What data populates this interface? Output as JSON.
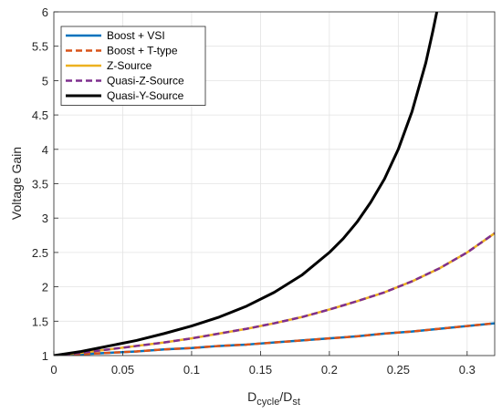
{
  "chart_data": {
    "type": "line",
    "title": "",
    "xlabel_main": "D",
    "xlabel_sub1": "cycle",
    "xlabel_mid": "/D",
    "xlabel_sub2": "st",
    "ylabel": "Voltage Gain",
    "xlim": [
      0,
      0.32
    ],
    "ylim": [
      1,
      6
    ],
    "xticks": [
      0,
      0.05,
      0.1,
      0.15,
      0.2,
      0.25,
      0.3
    ],
    "xtick_labels": [
      "0",
      "0.05",
      "0.1",
      "0.15",
      "0.2",
      "0.25",
      "0.3"
    ],
    "yticks": [
      1,
      1.5,
      2,
      2.5,
      3,
      3.5,
      4,
      4.5,
      5,
      5.5,
      6
    ],
    "ytick_labels": [
      "1",
      "1.5",
      "2",
      "2.5",
      "3",
      "3.5",
      "4",
      "4.5",
      "5",
      "5.5",
      "6"
    ],
    "grid": true,
    "legend_position": "top-left",
    "series": [
      {
        "name": "Boost + VSI",
        "color": "#0072BD",
        "dash": "solid",
        "x": [
          0,
          0.02,
          0.04,
          0.06,
          0.08,
          0.1,
          0.12,
          0.14,
          0.16,
          0.18,
          0.2,
          0.22,
          0.24,
          0.26,
          0.28,
          0.3,
          0.32
        ],
        "y": [
          1,
          1.02,
          1.04,
          1.06,
          1.09,
          1.11,
          1.14,
          1.16,
          1.19,
          1.22,
          1.25,
          1.28,
          1.32,
          1.35,
          1.39,
          1.43,
          1.47
        ]
      },
      {
        "name": "Boost + T-type",
        "color": "#D95319",
        "dash": "dashed",
        "x": [
          0,
          0.02,
          0.04,
          0.06,
          0.08,
          0.1,
          0.12,
          0.14,
          0.16,
          0.18,
          0.2,
          0.22,
          0.24,
          0.26,
          0.28,
          0.3,
          0.32
        ],
        "y": [
          1,
          1.02,
          1.04,
          1.06,
          1.09,
          1.11,
          1.14,
          1.16,
          1.19,
          1.22,
          1.25,
          1.28,
          1.32,
          1.35,
          1.39,
          1.43,
          1.47
        ]
      },
      {
        "name": "Z-Source",
        "color": "#EDB120",
        "dash": "solid",
        "x": [
          0,
          0.02,
          0.04,
          0.06,
          0.08,
          0.1,
          0.12,
          0.14,
          0.16,
          0.18,
          0.2,
          0.22,
          0.24,
          0.26,
          0.28,
          0.3,
          0.32
        ],
        "y": [
          1,
          1.04,
          1.09,
          1.14,
          1.19,
          1.25,
          1.32,
          1.39,
          1.47,
          1.56,
          1.67,
          1.79,
          1.92,
          2.08,
          2.27,
          2.5,
          2.78
        ]
      },
      {
        "name": "Quasi-Z-Source",
        "color": "#7E2F8E",
        "dash": "dashed",
        "x": [
          0,
          0.02,
          0.04,
          0.06,
          0.08,
          0.1,
          0.12,
          0.14,
          0.16,
          0.18,
          0.2,
          0.22,
          0.24,
          0.26,
          0.28,
          0.3,
          0.32
        ],
        "y": [
          1,
          1.04,
          1.09,
          1.14,
          1.19,
          1.25,
          1.32,
          1.39,
          1.47,
          1.56,
          1.67,
          1.79,
          1.92,
          2.08,
          2.27,
          2.5,
          2.78
        ]
      },
      {
        "name": "Quasi-Y-Source",
        "color": "#000000",
        "dash": "solid",
        "x": [
          0,
          0.02,
          0.04,
          0.06,
          0.08,
          0.1,
          0.12,
          0.14,
          0.16,
          0.18,
          0.2,
          0.21,
          0.22,
          0.23,
          0.24,
          0.25,
          0.26,
          0.27,
          0.275,
          0.278
        ],
        "y": [
          1,
          1.06,
          1.14,
          1.22,
          1.32,
          1.43,
          1.56,
          1.72,
          1.92,
          2.17,
          2.5,
          2.7,
          2.94,
          3.23,
          3.57,
          4.0,
          4.55,
          5.26,
          5.71,
          6.0
        ]
      }
    ]
  }
}
